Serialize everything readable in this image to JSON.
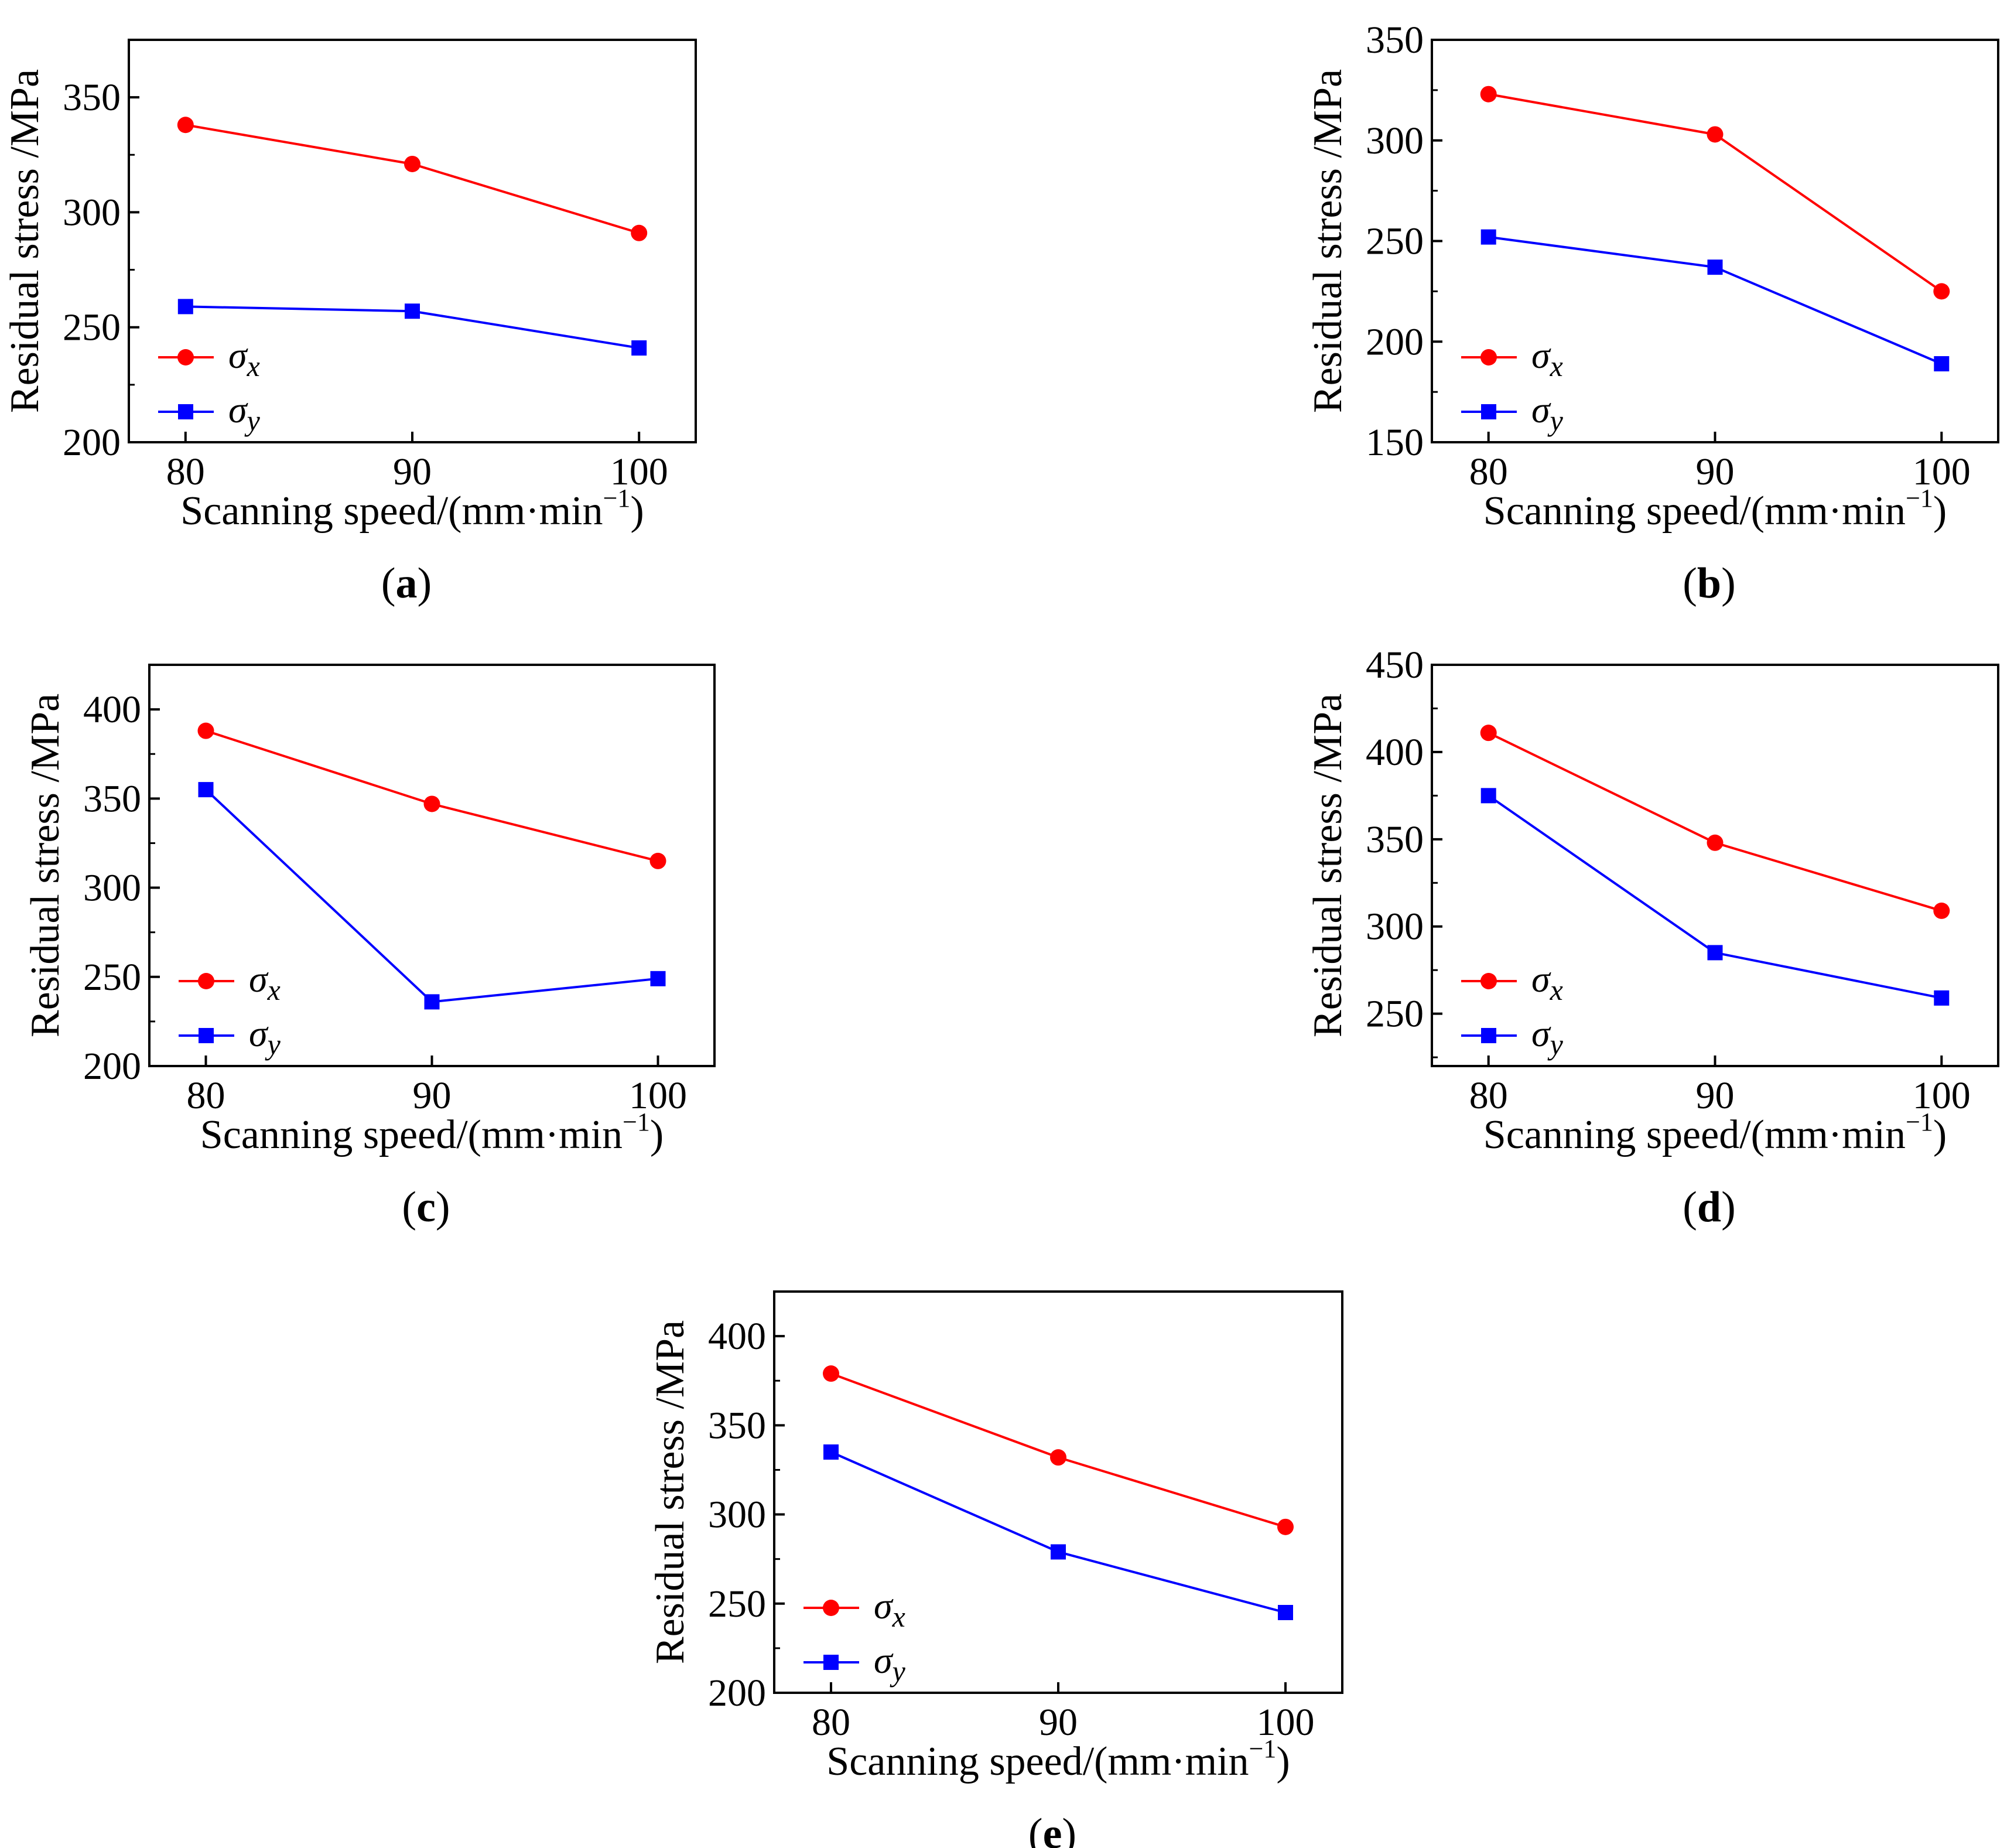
{
  "colors": {
    "sigma_x": "#ff0000",
    "sigma_y": "#0000ff",
    "axis": "#000000"
  },
  "legend": {
    "sigma_x_label": "σx",
    "sigma_y_label": "σy",
    "placement": "lower-left"
  },
  "chart_data": [
    {
      "panel": "a",
      "type": "line",
      "xlabel": "Scanning speed/(mm·min⁻¹)",
      "ylabel": "Residual stress /MPa",
      "x": [
        80,
        90,
        100
      ],
      "xlim": [
        77.5,
        102.5
      ],
      "ylim": [
        200,
        375
      ],
      "yticks": [
        200,
        250,
        300,
        350
      ],
      "series": [
        {
          "name": "σx",
          "marker": "circle",
          "values": [
            338,
            321,
            291
          ]
        },
        {
          "name": "σy",
          "marker": "square",
          "values": [
            259,
            257,
            241
          ]
        }
      ]
    },
    {
      "panel": "b",
      "type": "line",
      "xlabel": "Scanning speed/(mm·min⁻¹)",
      "ylabel": "Residual stress /MPa",
      "x": [
        80,
        90,
        100
      ],
      "xlim": [
        77.5,
        102.5
      ],
      "ylim": [
        150,
        350
      ],
      "yticks": [
        150,
        200,
        250,
        300,
        350
      ],
      "series": [
        {
          "name": "σx",
          "marker": "circle",
          "values": [
            323,
            303,
            225
          ]
        },
        {
          "name": "σy",
          "marker": "square",
          "values": [
            252,
            237,
            189
          ]
        }
      ]
    },
    {
      "panel": "c",
      "type": "line",
      "xlabel": "Scanning speed/(mm·min⁻¹)",
      "ylabel": "Residual stress /MPa",
      "x": [
        80,
        90,
        100
      ],
      "xlim": [
        77.5,
        102.5
      ],
      "ylim": [
        200,
        425
      ],
      "yticks": [
        200,
        250,
        300,
        350,
        400
      ],
      "series": [
        {
          "name": "σx",
          "marker": "circle",
          "values": [
            388,
            347,
            315
          ]
        },
        {
          "name": "σy",
          "marker": "square",
          "values": [
            355,
            236,
            249
          ]
        }
      ]
    },
    {
      "panel": "d",
      "type": "line",
      "xlabel": "Scanning speed/(mm·min⁻¹)",
      "ylabel": "Residual stress /MPa",
      "x": [
        80,
        90,
        100
      ],
      "xlim": [
        77.5,
        102.5
      ],
      "ylim": [
        220,
        450
      ],
      "yticks": [
        250,
        300,
        350,
        400,
        450
      ],
      "series": [
        {
          "name": "σx",
          "marker": "circle",
          "values": [
            411,
            348,
            309
          ]
        },
        {
          "name": "σy",
          "marker": "square",
          "values": [
            375,
            285,
            259
          ]
        }
      ]
    },
    {
      "panel": "e",
      "type": "line",
      "xlabel": "Scanning speed/(mm·min⁻¹)",
      "ylabel": "Residual stress /MPa",
      "x": [
        80,
        90,
        100
      ],
      "xlim": [
        77.5,
        102.5
      ],
      "ylim": [
        200,
        425
      ],
      "yticks": [
        200,
        250,
        300,
        350,
        400
      ],
      "series": [
        {
          "name": "σx",
          "marker": "circle",
          "values": [
            379,
            332,
            293
          ]
        },
        {
          "name": "σy",
          "marker": "square",
          "values": [
            335,
            279,
            245
          ]
        }
      ]
    }
  ]
}
